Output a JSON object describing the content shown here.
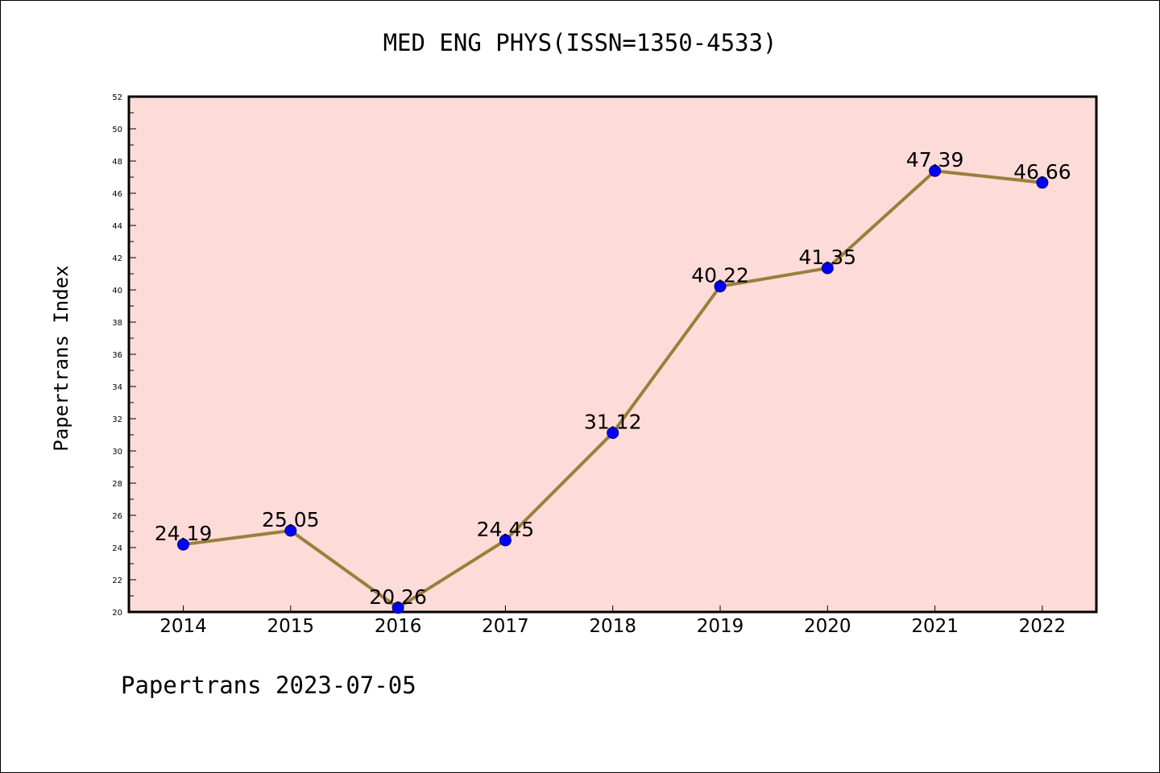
{
  "chart_data": {
    "type": "line",
    "title": "MED ENG PHYS(ISSN=1350-4533)",
    "xlabel": "",
    "ylabel": "Papertrans Index",
    "categories": [
      "2014",
      "2015",
      "2016",
      "2017",
      "2018",
      "2019",
      "2020",
      "2021",
      "2022"
    ],
    "series": [
      {
        "values": [
          24.19,
          25.05,
          20.26,
          24.45,
          31.12,
          40.22,
          41.35,
          47.39,
          46.66
        ],
        "labels": [
          "24.19",
          "25.05",
          "20.26",
          "24.45",
          "31.12",
          "40.22",
          "41.35",
          "47.39",
          "46.66"
        ]
      }
    ],
    "ylim": [
      20,
      52
    ],
    "y_ticks": [
      "20",
      "22",
      "24",
      "26",
      "28",
      "30",
      "32",
      "34",
      "36",
      "38",
      "40",
      "42",
      "44",
      "46",
      "48",
      "50",
      "52"
    ],
    "grid": false,
    "legend": "none",
    "colors": {
      "plot_background": "#fddbd9",
      "line": "#9a7f3a",
      "marker": "#0000ff",
      "marker_edge": "#000080"
    }
  },
  "footer": "Papertrans 2023-07-05"
}
